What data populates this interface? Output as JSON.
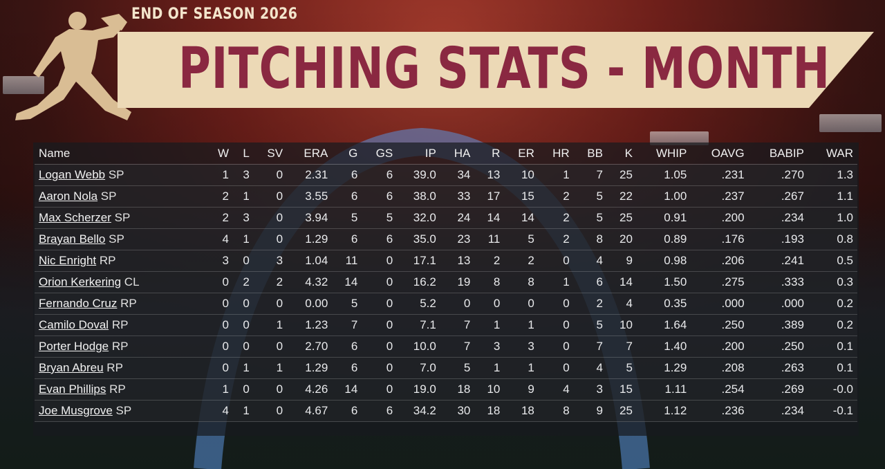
{
  "header": {
    "season_title": "END OF SEASON 2026",
    "page_title": "PITCHING STATS - MONTH"
  },
  "colors": {
    "banner_fill": "#ecd9b6",
    "banner_text": "#8a2841",
    "logo_fill": "#d9bd94",
    "season_text": "#f3e5cc",
    "arch": "#5a8fd8"
  },
  "icons": {
    "logo": "pitcher-silhouette-icon"
  },
  "table": {
    "columns": [
      "Name",
      "W",
      "L",
      "SV",
      "ERA",
      "G",
      "GS",
      "IP",
      "HA",
      "R",
      "ER",
      "HR",
      "BB",
      "K",
      "WHIP",
      "OAVG",
      "BABIP",
      "WAR"
    ],
    "rows": [
      {
        "name": "Logan Webb",
        "pos": "SP",
        "stats": [
          "1",
          "3",
          "0",
          "2.31",
          "6",
          "6",
          "39.0",
          "34",
          "13",
          "10",
          "1",
          "7",
          "25",
          "1.05",
          ".231",
          ".270",
          "1.3"
        ]
      },
      {
        "name": "Aaron Nola",
        "pos": "SP",
        "stats": [
          "2",
          "1",
          "0",
          "3.55",
          "6",
          "6",
          "38.0",
          "33",
          "17",
          "15",
          "2",
          "5",
          "22",
          "1.00",
          ".237",
          ".267",
          "1.1"
        ]
      },
      {
        "name": "Max Scherzer",
        "pos": "SP",
        "stats": [
          "2",
          "3",
          "0",
          "3.94",
          "5",
          "5",
          "32.0",
          "24",
          "14",
          "14",
          "2",
          "5",
          "25",
          "0.91",
          ".200",
          ".234",
          "1.0"
        ]
      },
      {
        "name": "Brayan Bello",
        "pos": "SP",
        "stats": [
          "4",
          "1",
          "0",
          "1.29",
          "6",
          "6",
          "35.0",
          "23",
          "11",
          "5",
          "2",
          "8",
          "20",
          "0.89",
          ".176",
          ".193",
          "0.8"
        ]
      },
      {
        "name": "Nic Enright",
        "pos": "RP",
        "stats": [
          "3",
          "0",
          "3",
          "1.04",
          "11",
          "0",
          "17.1",
          "13",
          "2",
          "2",
          "0",
          "4",
          "9",
          "0.98",
          ".206",
          ".241",
          "0.5"
        ]
      },
      {
        "name": "Orion Kerkering",
        "pos": "CL",
        "stats": [
          "0",
          "2",
          "2",
          "4.32",
          "14",
          "0",
          "16.2",
          "19",
          "8",
          "8",
          "1",
          "6",
          "14",
          "1.50",
          ".275",
          ".333",
          "0.3"
        ]
      },
      {
        "name": "Fernando Cruz",
        "pos": "RP",
        "stats": [
          "0",
          "0",
          "0",
          "0.00",
          "5",
          "0",
          "5.2",
          "0",
          "0",
          "0",
          "0",
          "2",
          "4",
          "0.35",
          ".000",
          ".000",
          "0.2"
        ]
      },
      {
        "name": "Camilo Doval",
        "pos": "RP",
        "stats": [
          "0",
          "0",
          "1",
          "1.23",
          "7",
          "0",
          "7.1",
          "7",
          "1",
          "1",
          "0",
          "5",
          "10",
          "1.64",
          ".250",
          ".389",
          "0.2"
        ]
      },
      {
        "name": "Porter Hodge",
        "pos": "RP",
        "stats": [
          "0",
          "0",
          "0",
          "2.70",
          "6",
          "0",
          "10.0",
          "7",
          "3",
          "3",
          "0",
          "7",
          "7",
          "1.40",
          ".200",
          ".250",
          "0.1"
        ]
      },
      {
        "name": "Bryan Abreu",
        "pos": "RP",
        "stats": [
          "0",
          "1",
          "1",
          "1.29",
          "6",
          "0",
          "7.0",
          "5",
          "1",
          "1",
          "0",
          "4",
          "5",
          "1.29",
          ".208",
          ".263",
          "0.1"
        ]
      },
      {
        "name": "Evan Phillips",
        "pos": "RP",
        "stats": [
          "1",
          "0",
          "0",
          "4.26",
          "14",
          "0",
          "19.0",
          "18",
          "10",
          "9",
          "4",
          "3",
          "15",
          "1.11",
          ".254",
          ".269",
          "-0.0"
        ]
      },
      {
        "name": "Joe Musgrove",
        "pos": "SP",
        "stats": [
          "4",
          "1",
          "0",
          "4.67",
          "6",
          "6",
          "34.2",
          "30",
          "18",
          "18",
          "8",
          "9",
          "25",
          "1.12",
          ".236",
          ".234",
          "-0.1"
        ]
      }
    ]
  }
}
